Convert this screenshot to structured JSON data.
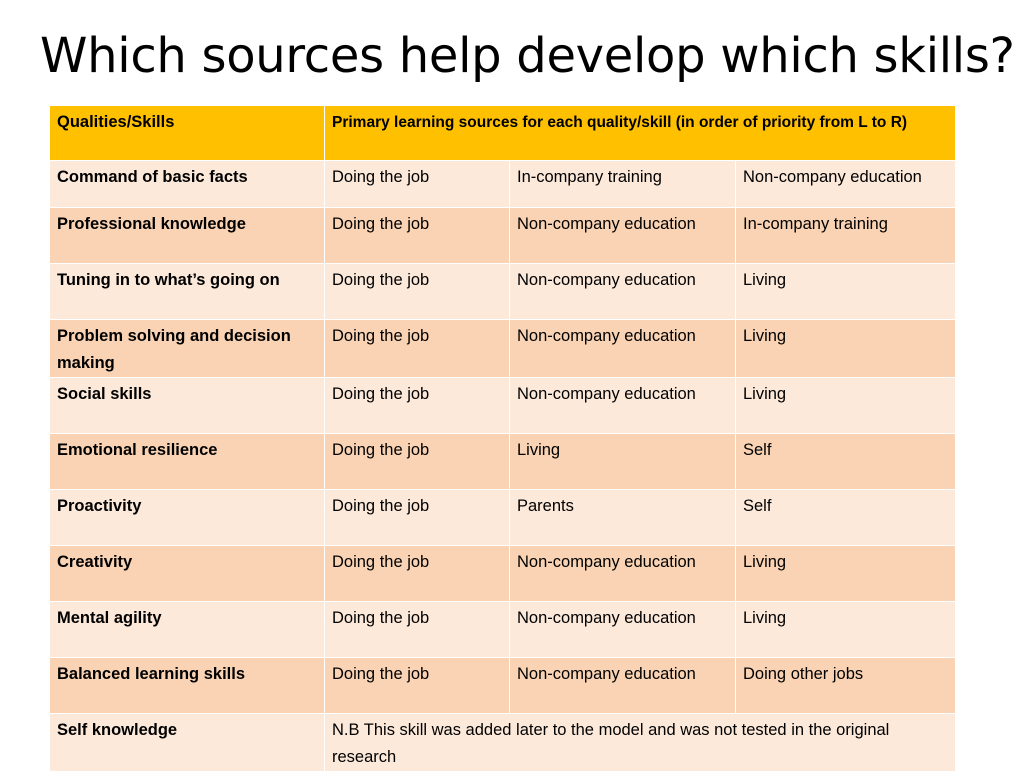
{
  "slide": {
    "title": "Which sources help develop which skills?"
  },
  "table": {
    "header": {
      "col1": "Qualities/Skills",
      "col2": "Primary learning sources for each  quality/skill (in order of priority from L to R)"
    },
    "rows": [
      {
        "skill": "Command of basic facts",
        "sources": [
          "Doing the job",
          "In-company training",
          "Non-company education"
        ]
      },
      {
        "skill": "Professional knowledge",
        "sources": [
          "Doing the job",
          "Non-company education",
          "In-company training"
        ]
      },
      {
        "skill": "Tuning in to what’s going on",
        "sources": [
          "Doing the job",
          "Non-company education",
          "Living"
        ]
      },
      {
        "skill": "Problem solving and decision making",
        "sources": [
          "Doing the job",
          "Non-company education",
          "Living"
        ]
      },
      {
        "skill": "Social skills",
        "sources": [
          "Doing the job",
          "Non-company education",
          "Living"
        ]
      },
      {
        "skill": "Emotional resilience",
        "sources": [
          "Doing the job",
          "Living",
          "Self"
        ]
      },
      {
        "skill": "Proactivity",
        "sources": [
          "Doing the job",
          "Parents",
          "Self"
        ]
      },
      {
        "skill": "Creativity",
        "sources": [
          "Doing the job",
          "Non-company education",
          "Living"
        ]
      },
      {
        "skill": "Mental agility",
        "sources": [
          "Doing the job",
          "Non-company education",
          "Living"
        ]
      },
      {
        "skill": "Balanced learning skills",
        "sources": [
          "Doing the job",
          "Non-company education",
          "Doing other jobs"
        ]
      }
    ],
    "last_row": {
      "skill": "Self knowledge",
      "note": "N.B This skill was added later to the model and was not tested in the original research"
    }
  },
  "colors": {
    "header_bg": "#ffc000",
    "row_light_bg": "#fce9da",
    "row_dark_bg": "#f9d3b3",
    "cell_border": "#ffffff"
  }
}
